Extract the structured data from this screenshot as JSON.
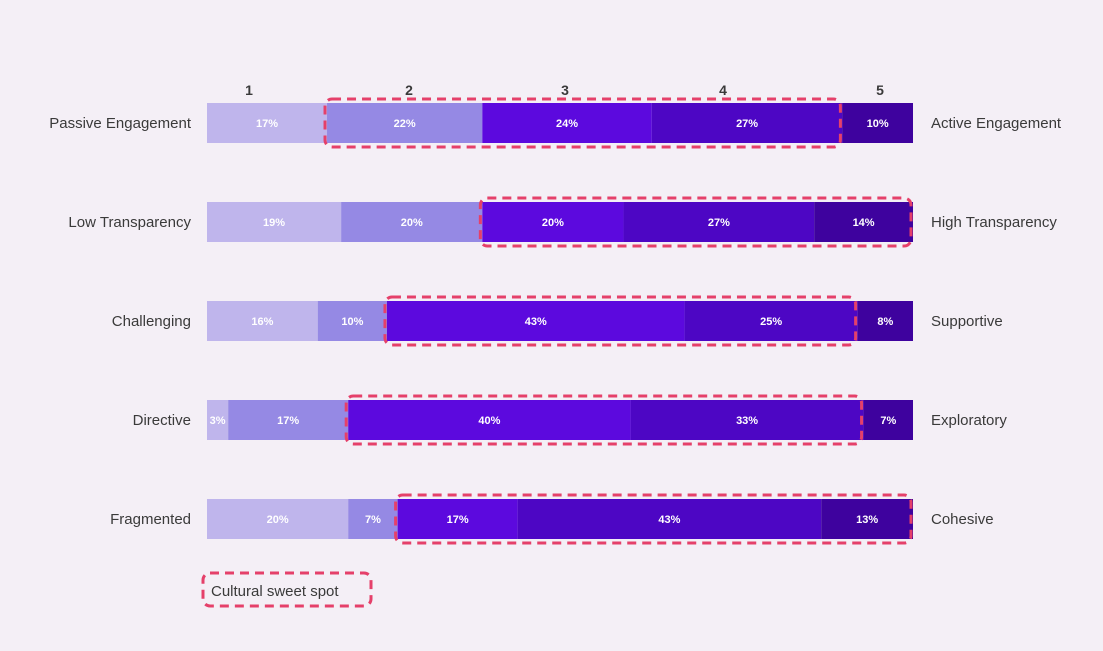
{
  "chart_data": {
    "type": "bar",
    "stacked": true,
    "orientation": "horizontal",
    "scale_labels": [
      "1",
      "2",
      "3",
      "4",
      "5"
    ],
    "segment_colors": [
      "#bfb5ec",
      "#9589e4",
      "#5c09de",
      "#4d06c4",
      "#3e029e"
    ],
    "highlight_color": "#e5406a",
    "rows": [
      {
        "left": "Passive Engagement",
        "right": "Active Engagement",
        "values": [
          17,
          22,
          24,
          27,
          10
        ],
        "labels": [
          "17%",
          "22%",
          "24%",
          "27%",
          "10%"
        ],
        "highlight": [
          2,
          4
        ]
      },
      {
        "left": "Low Transparency",
        "right": "High Transparency",
        "values": [
          19,
          20,
          20,
          27,
          14
        ],
        "labels": [
          "19%",
          "20%",
          "20%",
          "27%",
          "14%"
        ],
        "highlight": [
          3,
          5
        ]
      },
      {
        "left": "Challenging",
        "right": "Supportive",
        "values": [
          16,
          10,
          43,
          25,
          8
        ],
        "labels": [
          "16%",
          "10%",
          "43%",
          "25%",
          "8%"
        ],
        "highlight": [
          3,
          4
        ]
      },
      {
        "left": "Directive",
        "right": "Exploratory",
        "values": [
          3,
          17,
          40,
          33,
          7
        ],
        "labels": [
          "3%",
          "17%",
          "40%",
          "33%",
          "7%"
        ],
        "highlight": [
          3,
          4
        ]
      },
      {
        "left": "Fragmented",
        "right": "Cohesive",
        "values": [
          20,
          7,
          17,
          43,
          13
        ],
        "labels": [
          "20%",
          "7%",
          "17%",
          "43%",
          "13%"
        ],
        "highlight": [
          3,
          5
        ]
      }
    ],
    "legend": {
      "label": "Cultural sweet spot"
    },
    "grid": false
  }
}
